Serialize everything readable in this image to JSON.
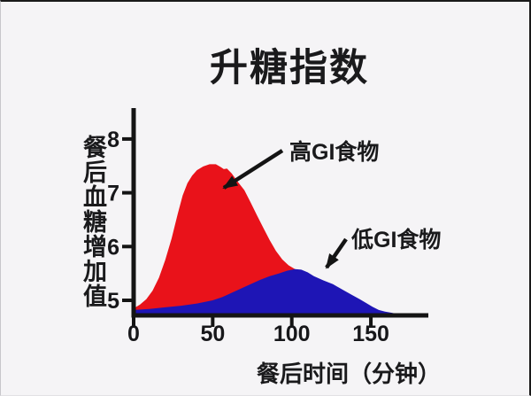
{
  "frame": {
    "background": "#f5f4f6",
    "edge_color": "#1a1a1a"
  },
  "chart_data": {
    "type": "area",
    "title": "升糖指数",
    "xlabel": "餐后时间（分钟）",
    "ylabel": "餐后血糖增加值",
    "x_ticks": [
      0,
      50,
      100,
      150
    ],
    "y_ticks": [
      8,
      7,
      6,
      5
    ],
    "xlim": [
      0,
      183
    ],
    "ylim": [
      4.67,
      8.55
    ],
    "grid": false,
    "legend": "arrow-annotations",
    "axis_color": "#141414",
    "series": [
      {
        "id": "high-gi",
        "name": "高GI食物",
        "color": "#e9121a",
        "points": [
          [
            0,
            4.85
          ],
          [
            4,
            4.92
          ],
          [
            8,
            5.02
          ],
          [
            12,
            5.18
          ],
          [
            16,
            5.42
          ],
          [
            20,
            5.75
          ],
          [
            24,
            6.15
          ],
          [
            28,
            6.62
          ],
          [
            31,
            6.95
          ],
          [
            34,
            7.18
          ],
          [
            37,
            7.32
          ],
          [
            40,
            7.42
          ],
          [
            44,
            7.49
          ],
          [
            48,
            7.53
          ],
          [
            52,
            7.53
          ],
          [
            55,
            7.48
          ],
          [
            57,
            7.44
          ],
          [
            59,
            7.45
          ],
          [
            62,
            7.36
          ],
          [
            66,
            7.2
          ],
          [
            70,
            7.05
          ],
          [
            74,
            6.82
          ],
          [
            78,
            6.58
          ],
          [
            82,
            6.35
          ],
          [
            86,
            6.12
          ],
          [
            90,
            5.92
          ],
          [
            94,
            5.76
          ],
          [
            98,
            5.65
          ],
          [
            102,
            5.58
          ],
          [
            106,
            5.54
          ],
          [
            110,
            5.51
          ]
        ]
      },
      {
        "id": "low-gi",
        "name": "低GI食物",
        "color": "#1e15b5",
        "points": [
          [
            0,
            4.82
          ],
          [
            10,
            4.84
          ],
          [
            20,
            4.87
          ],
          [
            30,
            4.9
          ],
          [
            40,
            4.94
          ],
          [
            50,
            5.0
          ],
          [
            56,
            5.06
          ],
          [
            62,
            5.14
          ],
          [
            68,
            5.22
          ],
          [
            74,
            5.3
          ],
          [
            80,
            5.38
          ],
          [
            86,
            5.45
          ],
          [
            92,
            5.5
          ],
          [
            97,
            5.55
          ],
          [
            102,
            5.58
          ],
          [
            106,
            5.57
          ],
          [
            110,
            5.52
          ],
          [
            114,
            5.45
          ],
          [
            120,
            5.37
          ],
          [
            126,
            5.3
          ],
          [
            132,
            5.2
          ],
          [
            138,
            5.1
          ],
          [
            143,
            5.02
          ],
          [
            147,
            4.95
          ],
          [
            151,
            4.88
          ],
          [
            155,
            4.82
          ],
          [
            159,
            4.79
          ],
          [
            163,
            4.77
          ],
          [
            168,
            4.74
          ],
          [
            172,
            4.73
          ],
          [
            178,
            4.72
          ]
        ]
      }
    ],
    "annotations": [
      {
        "id": "high-gi-label",
        "label": "高GI食物",
        "target_series": "high-gi"
      },
      {
        "id": "low-gi-label",
        "label": "低GI食物",
        "target_series": "low-gi"
      }
    ]
  }
}
